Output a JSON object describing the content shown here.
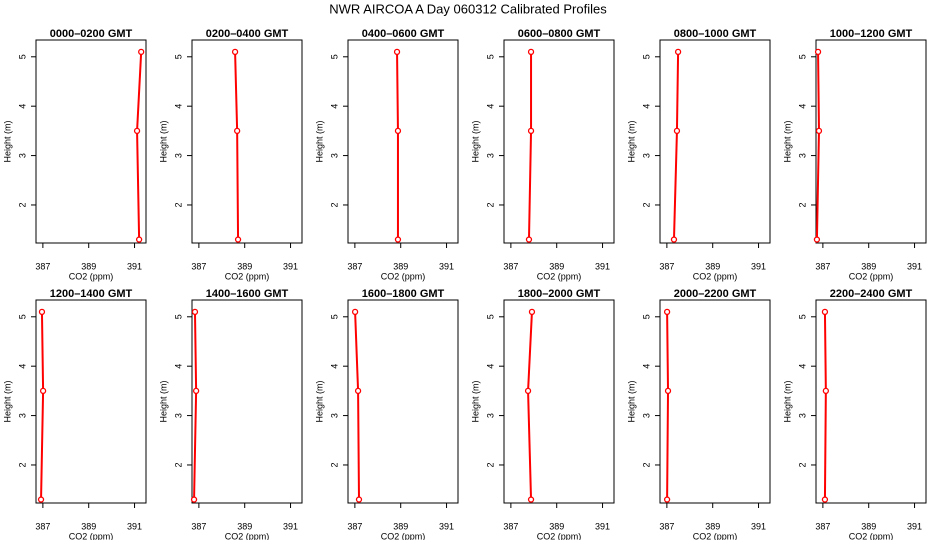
{
  "title": "NWR AIRCOA A  Day 060312  Calibrated Profiles",
  "chart_data": [
    {
      "type": "line",
      "title": "0000–0200 GMT",
      "x_label": "CO2 (ppm)",
      "y_label": "Height (m)",
      "xlim": [
        386.7,
        391.5
      ],
      "xticks": [
        387,
        389,
        391
      ],
      "ylim": [
        1.23,
        5.34
      ],
      "yticks": [
        2,
        3,
        4,
        5
      ],
      "series": [
        {
          "color": "#ff0000",
          "x": [
            391.29,
            391.11,
            391.2
          ],
          "values": [
            5.1,
            3.5,
            1.3
          ]
        }
      ]
    },
    {
      "type": "line",
      "title": "0200–0400 GMT",
      "x_label": "CO2 (ppm)",
      "y_label": "Height (m)",
      "xlim": [
        386.7,
        391.5
      ],
      "xticks": [
        387,
        389,
        391
      ],
      "ylim": [
        1.23,
        5.34
      ],
      "yticks": [
        2,
        3,
        4,
        5
      ],
      "series": [
        {
          "color": "#ff0000",
          "x": [
            388.58,
            388.67,
            388.71
          ],
          "values": [
            5.1,
            3.5,
            1.3
          ]
        }
      ]
    },
    {
      "type": "line",
      "title": "0400–0600 GMT",
      "x_label": "CO2 (ppm)",
      "y_label": "Height (m)",
      "xlim": [
        386.7,
        391.5
      ],
      "xticks": [
        387,
        389,
        391
      ],
      "ylim": [
        1.23,
        5.34
      ],
      "yticks": [
        2,
        3,
        4,
        5
      ],
      "series": [
        {
          "color": "#ff0000",
          "x": [
            388.84,
            388.88,
            388.88
          ],
          "values": [
            5.1,
            3.5,
            1.3
          ]
        }
      ]
    },
    {
      "type": "line",
      "title": "0600–0800 GMT",
      "x_label": "CO2 (ppm)",
      "y_label": "Height (m)",
      "xlim": [
        386.7,
        391.5
      ],
      "xticks": [
        387,
        389,
        391
      ],
      "ylim": [
        1.23,
        5.34
      ],
      "yticks": [
        2,
        3,
        4,
        5
      ],
      "series": [
        {
          "color": "#ff0000",
          "x": [
            387.88,
            387.88,
            387.79
          ],
          "values": [
            5.1,
            3.5,
            1.3
          ]
        }
      ]
    },
    {
      "type": "line",
      "title": "0800–1000 GMT",
      "x_label": "CO2 (ppm)",
      "y_label": "Height (m)",
      "xlim": [
        386.7,
        391.5
      ],
      "xticks": [
        387,
        389,
        391
      ],
      "ylim": [
        1.23,
        5.34
      ],
      "yticks": [
        2,
        3,
        4,
        5
      ],
      "series": [
        {
          "color": "#ff0000",
          "x": [
            387.49,
            387.44,
            387.31
          ],
          "values": [
            5.1,
            3.5,
            1.3
          ]
        }
      ]
    },
    {
      "type": "line",
      "title": "1000–1200 GMT",
      "x_label": "CO2 (ppm)",
      "y_label": "Height (m)",
      "xlim": [
        386.7,
        391.5
      ],
      "xticks": [
        387,
        389,
        391
      ],
      "ylim": [
        1.23,
        5.34
      ],
      "yticks": [
        2,
        3,
        4,
        5
      ],
      "series": [
        {
          "color": "#ff0000",
          "x": [
            386.79,
            386.83,
            386.74
          ],
          "values": [
            5.1,
            3.5,
            1.3
          ]
        }
      ]
    },
    {
      "type": "line",
      "title": "1200–1400 GMT",
      "x_label": "CO2 (ppm)",
      "y_label": "Height (m)",
      "xlim": [
        386.7,
        391.5
      ],
      "xticks": [
        387,
        389,
        391
      ],
      "ylim": [
        1.23,
        5.34
      ],
      "yticks": [
        2,
        3,
        4,
        5
      ],
      "series": [
        {
          "color": "#ff0000",
          "x": [
            386.96,
            387.01,
            386.92
          ],
          "values": [
            5.1,
            3.5,
            1.3
          ]
        }
      ]
    },
    {
      "type": "line",
      "title": "1400–1600 GMT",
      "x_label": "CO2 (ppm)",
      "y_label": "Height (m)",
      "xlim": [
        386.7,
        391.5
      ],
      "xticks": [
        387,
        389,
        391
      ],
      "ylim": [
        1.23,
        5.34
      ],
      "yticks": [
        2,
        3,
        4,
        5
      ],
      "series": [
        {
          "color": "#ff0000",
          "x": [
            386.83,
            386.88,
            386.79
          ],
          "values": [
            5.1,
            3.5,
            1.3
          ]
        }
      ]
    },
    {
      "type": "line",
      "title": "1600–1800 GMT",
      "x_label": "CO2 (ppm)",
      "y_label": "Height (m)",
      "xlim": [
        386.7,
        391.5
      ],
      "xticks": [
        387,
        389,
        391
      ],
      "ylim": [
        1.23,
        5.34
      ],
      "yticks": [
        2,
        3,
        4,
        5
      ],
      "series": [
        {
          "color": "#ff0000",
          "x": [
            387.01,
            387.14,
            387.18
          ],
          "values": [
            5.1,
            3.5,
            1.3
          ]
        }
      ]
    },
    {
      "type": "line",
      "title": "1800–2000 GMT",
      "x_label": "CO2 (ppm)",
      "y_label": "Height (m)",
      "xlim": [
        386.7,
        391.5
      ],
      "xticks": [
        387,
        389,
        391
      ],
      "ylim": [
        1.23,
        5.34
      ],
      "yticks": [
        2,
        3,
        4,
        5
      ],
      "series": [
        {
          "color": "#ff0000",
          "x": [
            387.92,
            387.75,
            387.88
          ],
          "values": [
            5.1,
            3.5,
            1.3
          ]
        }
      ]
    },
    {
      "type": "line",
      "title": "2000–2200 GMT",
      "x_label": "CO2 (ppm)",
      "y_label": "Height (m)",
      "xlim": [
        386.7,
        391.5
      ],
      "xticks": [
        387,
        389,
        391
      ],
      "ylim": [
        1.23,
        5.34
      ],
      "yticks": [
        2,
        3,
        4,
        5
      ],
      "series": [
        {
          "color": "#ff0000",
          "x": [
            387.01,
            387.05,
            387.01
          ],
          "values": [
            5.1,
            3.5,
            1.3
          ]
        }
      ]
    },
    {
      "type": "line",
      "title": "2200–2400 GMT",
      "x_label": "CO2 (ppm)",
      "y_label": "Height (m)",
      "xlim": [
        386.7,
        391.5
      ],
      "xticks": [
        387,
        389,
        391
      ],
      "ylim": [
        1.23,
        5.34
      ],
      "yticks": [
        2,
        3,
        4,
        5
      ],
      "series": [
        {
          "color": "#ff0000",
          "x": [
            387.09,
            387.13,
            387.09
          ],
          "values": [
            5.1,
            3.5,
            1.3
          ]
        }
      ]
    }
  ]
}
